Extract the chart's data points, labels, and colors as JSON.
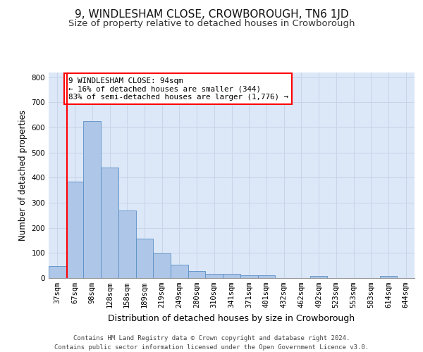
{
  "title": "9, WINDLESHAM CLOSE, CROWBOROUGH, TN6 1JD",
  "subtitle": "Size of property relative to detached houses in Crowborough",
  "xlabel": "Distribution of detached houses by size in Crowborough",
  "ylabel": "Number of detached properties",
  "bar_labels": [
    "37sqm",
    "67sqm",
    "98sqm",
    "128sqm",
    "158sqm",
    "189sqm",
    "219sqm",
    "249sqm",
    "280sqm",
    "310sqm",
    "341sqm",
    "371sqm",
    "401sqm",
    "432sqm",
    "462sqm",
    "492sqm",
    "523sqm",
    "553sqm",
    "583sqm",
    "614sqm",
    "644sqm"
  ],
  "bar_values": [
    47,
    383,
    625,
    440,
    270,
    157,
    97,
    53,
    28,
    16,
    16,
    11,
    11,
    0,
    0,
    9,
    0,
    0,
    0,
    9,
    0
  ],
  "bar_color": "#aec6e8",
  "bar_edge_color": "#5a8fc4",
  "grid_color": "#c8d4e8",
  "background_color": "#dce8f8",
  "vline_color": "red",
  "annotation_text": "9 WINDLESHAM CLOSE: 94sqm\n← 16% of detached houses are smaller (344)\n83% of semi-detached houses are larger (1,776) →",
  "annotation_box_color": "white",
  "annotation_box_edge": "red",
  "ylim": [
    0,
    820
  ],
  "yticks": [
    0,
    100,
    200,
    300,
    400,
    500,
    600,
    700,
    800
  ],
  "footer_text": "Contains HM Land Registry data © Crown copyright and database right 2024.\nContains public sector information licensed under the Open Government Licence v3.0.",
  "title_fontsize": 11,
  "subtitle_fontsize": 9.5,
  "xlabel_fontsize": 9,
  "ylabel_fontsize": 8.5,
  "tick_fontsize": 7.5,
  "footer_fontsize": 6.5
}
